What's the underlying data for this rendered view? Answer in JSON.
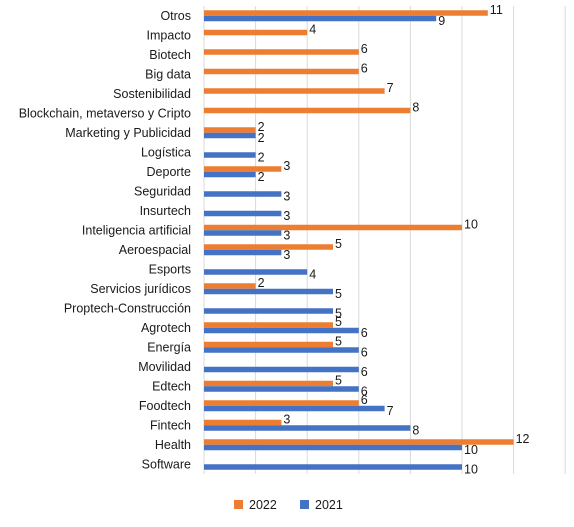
{
  "chart_data": {
    "type": "bar",
    "orientation": "horizontal",
    "categories": [
      "Otros",
      "Impacto",
      "Biotech",
      "Big data",
      "Sostenibilidad",
      "Blockchain, metaverso y Cripto",
      "Marketing y Publicidad",
      "Logística",
      "Deporte",
      "Seguridad",
      "Insurtech",
      "Inteligencia artificial",
      "Aeroespacial",
      "Esports",
      "Servicios jurídicos",
      "Proptech-Construcción",
      "Agrotech",
      "Energía",
      "Movilidad",
      "Edtech",
      "Foodtech",
      "Fintech",
      "Health",
      "Software"
    ],
    "series": [
      {
        "name": "2022",
        "color": "#ED7D31",
        "values": [
          11,
          4,
          6,
          6,
          7,
          8,
          2,
          null,
          3,
          null,
          null,
          10,
          5,
          null,
          2,
          null,
          5,
          5,
          null,
          5,
          6,
          3,
          12,
          null
        ]
      },
      {
        "name": "2021",
        "color": "#4472C4",
        "values": [
          9,
          null,
          null,
          null,
          null,
          null,
          2,
          2,
          2,
          3,
          3,
          3,
          3,
          4,
          5,
          5,
          6,
          6,
          6,
          6,
          7,
          8,
          10,
          10
        ]
      }
    ],
    "xlim": [
      0,
      14
    ],
    "gridlines": "vertical",
    "legend": "bottom-center",
    "title": "",
    "xlabel": "",
    "ylabel": ""
  }
}
